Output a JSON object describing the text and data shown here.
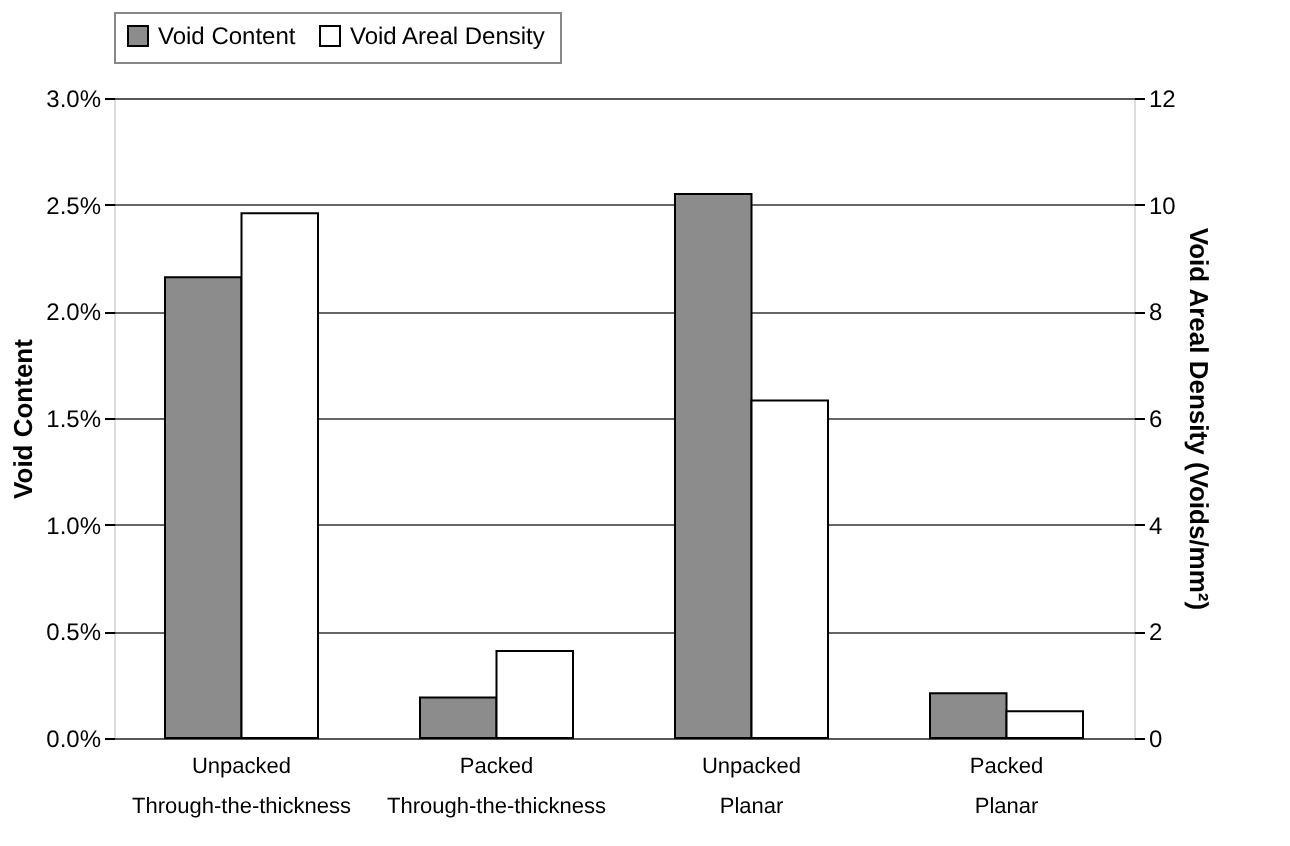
{
  "chart_data": {
    "type": "bar",
    "categories": [
      "Unpacked\nThrough-the-thickness",
      "Packed\nThrough-the-thickness",
      "Unpacked\nPlanar",
      "Packed\nPlanar"
    ],
    "series": [
      {
        "name": "Void Content",
        "color": "#8c8c8c",
        "values": [
          2.16,
          0.19,
          2.55,
          0.21
        ]
      },
      {
        "name": "Void Areal Density",
        "color": "#ffffff",
        "values": [
          9.84,
          1.63,
          6.33,
          0.5
        ],
        "axis": "y2"
      }
    ],
    "ylabel": "Void Content",
    "y2label": "Void Areal Density (Voids/mm²)",
    "ylim": [
      0,
      3
    ],
    "yticks": [
      {
        "value": 0,
        "label": "0.0%"
      },
      {
        "value": 0.5,
        "label": "0.5%"
      },
      {
        "value": 1,
        "label": "1.0%"
      },
      {
        "value": 1.5,
        "label": "1.5%"
      },
      {
        "value": 2,
        "label": "2.0%"
      },
      {
        "value": 2.5,
        "label": "2.5%"
      },
      {
        "value": 3,
        "label": "3.0%"
      }
    ],
    "y2lim": [
      0,
      12
    ],
    "y2ticks": [
      0,
      2,
      4,
      6,
      8,
      10,
      12
    ],
    "grid": "y",
    "legend": "top"
  }
}
